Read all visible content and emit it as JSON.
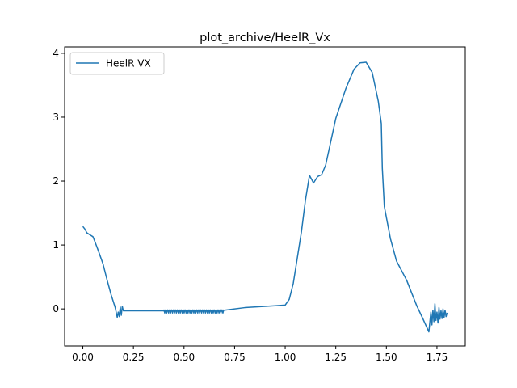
{
  "chart_data": {
    "type": "line",
    "title": "plot_archive/HeelR_Vx",
    "xlabel": "",
    "ylabel": "",
    "xlim": [
      -0.09,
      1.89
    ],
    "ylim": [
      -0.58,
      4.1
    ],
    "xticks": [
      0.0,
      0.25,
      0.5,
      0.75,
      1.0,
      1.25,
      1.5,
      1.75
    ],
    "xtick_labels": [
      "0.00",
      "0.25",
      "0.50",
      "0.75",
      "1.00",
      "1.25",
      "1.50",
      "1.75"
    ],
    "yticks": [
      0,
      1,
      2,
      3,
      4
    ],
    "ytick_labels": [
      "0",
      "1",
      "2",
      "3",
      "4"
    ],
    "grid": false,
    "legend": {
      "position": "upper-left",
      "entries": [
        "HeelR VX"
      ]
    },
    "series": [
      {
        "name": "HeelR VX",
        "color": "#1f77b4",
        "points": [
          [
            0.0,
            1.29
          ],
          [
            0.01,
            1.25
          ],
          [
            0.02,
            1.19
          ],
          [
            0.04,
            1.15
          ],
          [
            0.05,
            1.13
          ],
          [
            0.06,
            1.05
          ],
          [
            0.08,
            0.88
          ],
          [
            0.1,
            0.7
          ],
          [
            0.12,
            0.45
          ],
          [
            0.14,
            0.22
          ],
          [
            0.16,
            0.02
          ],
          [
            0.17,
            -0.13
          ],
          [
            0.175,
            -0.05
          ],
          [
            0.18,
            -0.12
          ],
          [
            0.185,
            0.03
          ],
          [
            0.19,
            -0.1
          ],
          [
            0.195,
            0.04
          ],
          [
            0.2,
            -0.03
          ],
          [
            0.3,
            -0.03
          ],
          [
            0.4,
            -0.03
          ],
          [
            0.5,
            -0.03
          ],
          [
            0.6,
            -0.03
          ],
          [
            0.7,
            -0.02
          ],
          [
            0.8,
            0.02
          ],
          [
            0.9,
            0.04
          ],
          [
            0.95,
            0.05
          ],
          [
            1.0,
            0.06
          ],
          [
            1.02,
            0.15
          ],
          [
            1.04,
            0.4
          ],
          [
            1.06,
            0.8
          ],
          [
            1.08,
            1.2
          ],
          [
            1.1,
            1.7
          ],
          [
            1.12,
            2.09
          ],
          [
            1.14,
            1.97
          ],
          [
            1.16,
            2.07
          ],
          [
            1.18,
            2.1
          ],
          [
            1.2,
            2.25
          ],
          [
            1.25,
            2.98
          ],
          [
            1.3,
            3.45
          ],
          [
            1.34,
            3.75
          ],
          [
            1.37,
            3.85
          ],
          [
            1.4,
            3.86
          ],
          [
            1.43,
            3.7
          ],
          [
            1.46,
            3.25
          ],
          [
            1.475,
            2.9
          ],
          [
            1.48,
            2.2
          ],
          [
            1.49,
            1.6
          ],
          [
            1.52,
            1.1
          ],
          [
            1.55,
            0.75
          ],
          [
            1.6,
            0.45
          ],
          [
            1.65,
            0.05
          ],
          [
            1.68,
            -0.15
          ],
          [
            1.71,
            -0.36
          ],
          [
            1.72,
            -0.05
          ],
          [
            1.725,
            -0.25
          ],
          [
            1.73,
            -0.02
          ],
          [
            1.735,
            -0.2
          ],
          [
            1.74,
            0.08
          ],
          [
            1.745,
            -0.18
          ],
          [
            1.75,
            -0.05
          ],
          [
            1.755,
            -0.22
          ],
          [
            1.76,
            0.02
          ],
          [
            1.765,
            -0.16
          ],
          [
            1.77,
            -0.03
          ],
          [
            1.775,
            -0.15
          ],
          [
            1.78,
            0.0
          ],
          [
            1.785,
            -0.14
          ],
          [
            1.79,
            -0.02
          ],
          [
            1.795,
            -0.12
          ],
          [
            1.8,
            -0.06
          ]
        ],
        "noisy_ranges": [
          {
            "x_start": 0.4,
            "x_end": 0.7,
            "center": -0.04,
            "amplitude": 0.03
          }
        ]
      }
    ]
  }
}
